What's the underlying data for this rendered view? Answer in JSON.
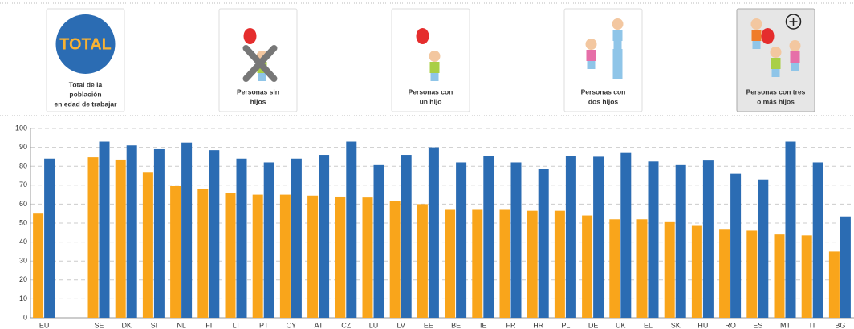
{
  "buttons": [
    {
      "badge": "TOTAL",
      "lines": [
        "Total de la",
        "población",
        "en edad de trabajar"
      ]
    },
    {
      "lines": [
        "Personas sin",
        "hijos"
      ]
    },
    {
      "lines": [
        "Personas con",
        "un hijo"
      ]
    },
    {
      "lines": [
        "Personas con",
        "dos hijos"
      ]
    },
    {
      "lines": [
        "Personas con tres",
        "o más hijos"
      ]
    }
  ],
  "chart_data": {
    "type": "bar",
    "categories": [
      "EU",
      null,
      "SE",
      "DK",
      "SI",
      "NL",
      "FI",
      "LT",
      "PT",
      "CY",
      "AT",
      "CZ",
      "LU",
      "LV",
      "EE",
      "BE",
      "IE",
      "FR",
      "HR",
      "PL",
      "DE",
      "UK",
      "EL",
      "SK",
      "HU",
      "RO",
      "ES",
      "MT",
      "IT",
      "BG"
    ],
    "series": [
      {
        "color": "#f9a51b",
        "values": [
          55,
          null,
          84.7,
          83.5,
          77,
          69.5,
          68,
          66,
          65,
          65,
          64.5,
          64,
          63.5,
          61.5,
          60,
          57,
          57,
          57,
          56.5,
          56.5,
          54,
          52,
          52,
          50.5,
          48.5,
          46.5,
          46,
          44,
          43.5,
          35
        ]
      },
      {
        "color": "#2b6cb3",
        "values": [
          84,
          null,
          93,
          91,
          89,
          92.5,
          88.5,
          84,
          82,
          84,
          86,
          93,
          81,
          86,
          90,
          82,
          85.5,
          82,
          78.5,
          85.5,
          85,
          87,
          82.5,
          81,
          83,
          76,
          73,
          93,
          82,
          53.5
        ]
      }
    ],
    "ylim": [
      0,
      100
    ],
    "yticks": [
      0,
      10,
      20,
      30,
      40,
      50,
      60,
      70,
      80,
      90,
      100
    ],
    "grid": true
  }
}
